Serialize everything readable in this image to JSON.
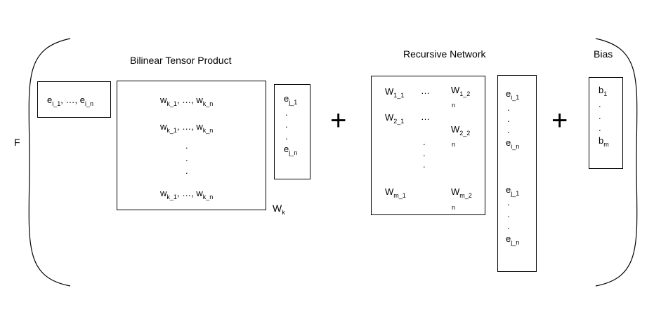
{
  "function_label": "F",
  "sections": {
    "bilinear": {
      "title": "Bilinear Tensor Product"
    },
    "recursive": {
      "title": "Recursive Network"
    },
    "bias": {
      "title": "Bias"
    }
  },
  "operators": {
    "plus": "+"
  },
  "ellipsis": "…",
  "dot": ".",
  "row_vector": {
    "first_base": "e",
    "first_sub": "i_1",
    "sep": ", …, ",
    "last_base": "e",
    "last_sub": "i_n"
  },
  "tensor": {
    "row_first_base": "w",
    "row_first_sub": "k_1",
    "sep": ", …, ",
    "row_last_base": "w",
    "row_last_sub": "k_n",
    "label_base": "W",
    "label_sub": "k"
  },
  "col_vector_j": {
    "first_base": "e",
    "first_sub": "j_1",
    "last_base": "e",
    "last_sub": "j_n"
  },
  "weights": {
    "w11": {
      "base": "W",
      "sub": "1_1"
    },
    "w12": {
      "base": "W",
      "sub": "1_2",
      "n": "n"
    },
    "w21": {
      "base": "W",
      "sub": "2_1"
    },
    "w22": {
      "base": "W",
      "sub": "2_2",
      "n": "n"
    },
    "wm1": {
      "base": "W",
      "sub": "m_1"
    },
    "wm2": {
      "base": "W",
      "sub": "m_2",
      "n": "n"
    }
  },
  "concat_vector": {
    "i_first": {
      "base": "e",
      "sub": "i_1"
    },
    "i_last": {
      "base": "e",
      "sub": "i_n"
    },
    "j_first": {
      "base": "e",
      "sub": "j_1"
    },
    "j_last": {
      "base": "e",
      "sub": "j_n"
    }
  },
  "bias_vector": {
    "first": {
      "base": "b",
      "sub": "1"
    },
    "last": {
      "base": "b",
      "sub": "m"
    }
  }
}
